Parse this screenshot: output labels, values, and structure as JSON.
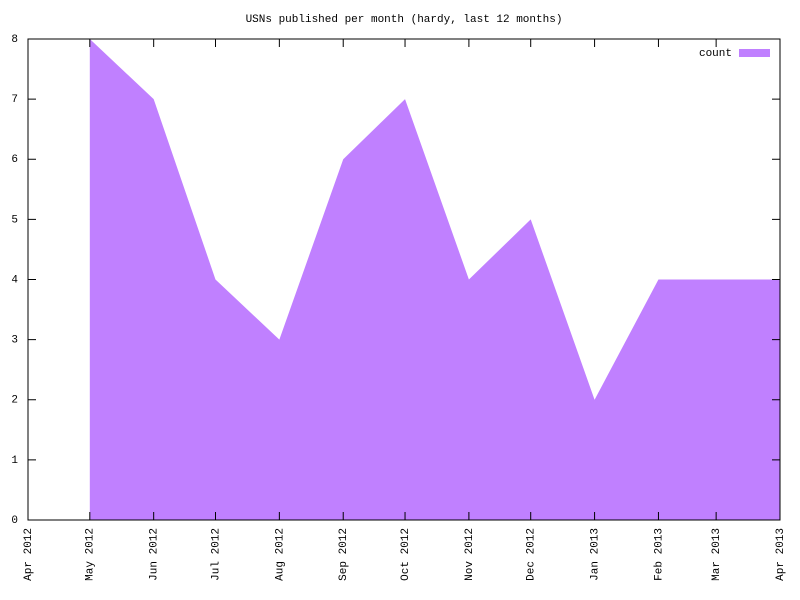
{
  "chart_data": {
    "type": "area",
    "title": "USNs published per month (hardy, last 12 months)",
    "x": [
      "May 2012",
      "Jun 2012",
      "Jul 2012",
      "Aug 2012",
      "Sep 2012",
      "Oct 2012",
      "Nov 2012",
      "Dec 2012",
      "Jan 2013",
      "Feb 2013",
      "Mar 2013",
      "Apr 2013"
    ],
    "series": [
      {
        "name": "count",
        "color": "#c080ff",
        "values": [
          8,
          7,
          4,
          3,
          6,
          7,
          4,
          5,
          2,
          4,
          4,
          4
        ]
      }
    ],
    "xlim": [
      "Apr 2012",
      "Apr 2013"
    ],
    "xticks": [
      "Apr 2012",
      "May 2012",
      "Jun 2012",
      "Jul 2012",
      "Aug 2012",
      "Sep 2012",
      "Oct 2012",
      "Nov 2012",
      "Dec 2012",
      "Jan 2013",
      "Feb 2013",
      "Mar 2013",
      "Apr 2013"
    ],
    "ylim": [
      0,
      8
    ],
    "yticks": [
      0,
      1,
      2,
      3,
      4,
      5,
      6,
      7,
      8
    ],
    "legend": "top-right"
  }
}
